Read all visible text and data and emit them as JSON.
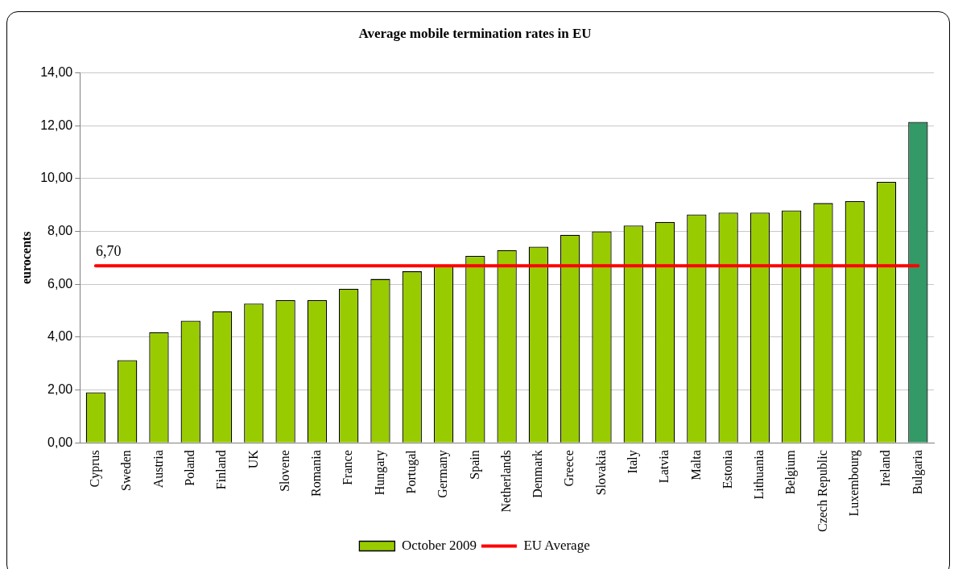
{
  "chart_data": {
    "type": "bar",
    "title": "Average mobile termination rates in EU",
    "ylabel": "eurocents",
    "categories": [
      "Cyprus",
      "Sweden",
      "Austria",
      "Poland",
      "Finland",
      "UK",
      "Slovene",
      "Romania",
      "France",
      "Hungary",
      "Portugal",
      "Germany",
      "Spain",
      "Netherlands",
      "Denmark",
      "Greece",
      "Slovakia",
      "Italy",
      "Latvia",
      "Malta",
      "Estonia",
      "Lithuania",
      "Belgium",
      "Czech Republic",
      "Luxembourg",
      "Ireland",
      "Bulgaria"
    ],
    "series": [
      {
        "name": "October 2009",
        "color": "#99cc00",
        "colors": [
          "#99cc00",
          "#99cc00",
          "#99cc00",
          "#99cc00",
          "#99cc00",
          "#99cc00",
          "#99cc00",
          "#99cc00",
          "#99cc00",
          "#99cc00",
          "#99cc00",
          "#99cc00",
          "#99cc00",
          "#99cc00",
          "#99cc00",
          "#99cc00",
          "#99cc00",
          "#99cc00",
          "#99cc00",
          "#99cc00",
          "#99cc00",
          "#99cc00",
          "#99cc00",
          "#99cc00",
          "#99cc00",
          "#99cc00",
          "#339966"
        ],
        "values": [
          1.91,
          3.13,
          4.19,
          4.62,
          4.98,
          5.27,
          5.4,
          5.4,
          5.83,
          6.2,
          6.49,
          6.72,
          7.07,
          7.29,
          7.42,
          7.87,
          8.0,
          8.22,
          8.36,
          8.64,
          8.71,
          8.71,
          8.79,
          9.07,
          9.14,
          9.87,
          12.14
        ]
      },
      {
        "name": "EU Average",
        "type": "line",
        "color": "#ff0000",
        "values": [
          6.7,
          6.7,
          6.7,
          6.7,
          6.7,
          6.7,
          6.7,
          6.7,
          6.7,
          6.7,
          6.7,
          6.7,
          6.7,
          6.7,
          6.7,
          6.7,
          6.7,
          6.7,
          6.7,
          6.7,
          6.7,
          6.7,
          6.7,
          6.7,
          6.7,
          6.7,
          6.7
        ],
        "value_labels": [
          "6,70",
          null,
          null,
          null,
          null,
          null,
          null,
          null,
          null,
          null,
          null,
          null,
          null,
          null,
          null,
          null,
          null,
          null,
          null,
          null,
          null,
          null,
          null,
          null,
          null,
          null,
          null
        ]
      }
    ],
    "ylim": [
      0,
      14
    ],
    "yticks": [
      {
        "value": 0,
        "label": "0,00"
      },
      {
        "value": 2,
        "label": "2,00"
      },
      {
        "value": 4,
        "label": "4,00"
      },
      {
        "value": 6,
        "label": "6,00"
      },
      {
        "value": 8,
        "label": "8,00"
      },
      {
        "value": 10,
        "label": "10,00"
      },
      {
        "value": 12,
        "label": "12,00"
      },
      {
        "value": 14,
        "label": "14,00"
      }
    ],
    "grid": "y",
    "legend": "bottom",
    "marker": "none"
  }
}
